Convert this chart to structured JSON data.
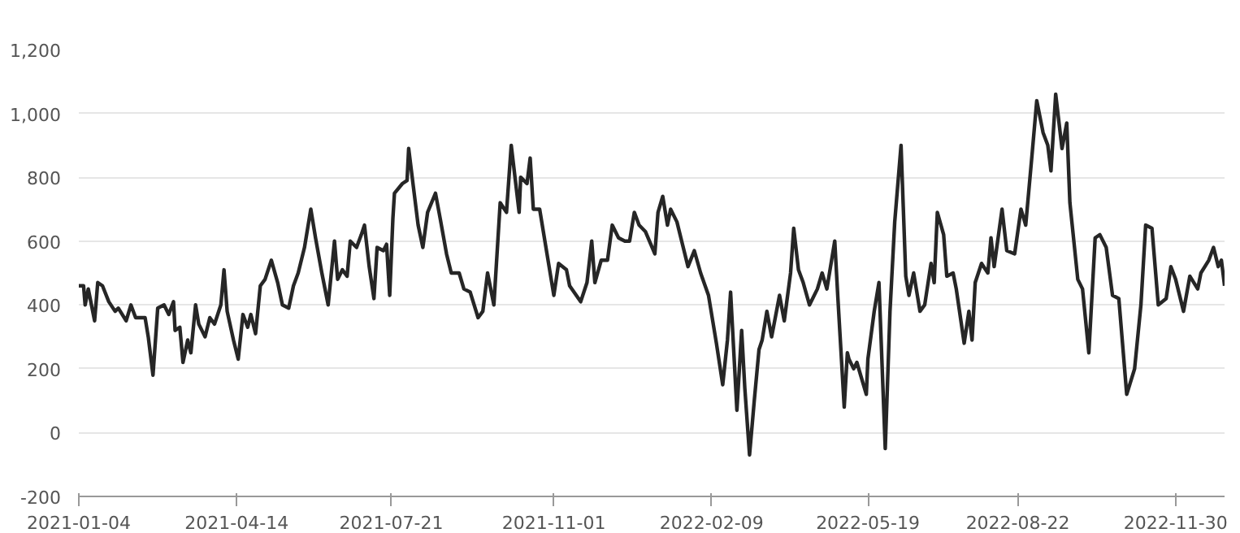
{
  "chart_data": {
    "type": "line",
    "x": [
      "2021-01-04",
      "2021-01-07",
      "2021-01-08",
      "2021-01-10",
      "2021-01-12",
      "2021-01-14",
      "2021-01-16",
      "2021-01-19",
      "2021-01-23",
      "2021-01-27",
      "2021-01-29",
      "2021-02-03",
      "2021-02-06",
      "2021-02-09",
      "2021-02-15",
      "2021-02-17",
      "2021-02-20",
      "2021-02-23",
      "2021-02-27",
      "2021-03-02",
      "2021-03-05",
      "2021-03-06",
      "2021-03-09",
      "2021-03-11",
      "2021-03-14",
      "2021-03-16",
      "2021-03-19",
      "2021-03-21",
      "2021-03-25",
      "2021-03-28",
      "2021-03-31",
      "2021-04-04",
      "2021-04-06",
      "2021-04-08",
      "2021-04-12",
      "2021-04-15",
      "2021-04-18",
      "2021-04-21",
      "2021-04-23",
      "2021-04-26",
      "2021-04-29",
      "2021-05-02",
      "2021-05-06",
      "2021-05-10",
      "2021-05-13",
      "2021-05-17",
      "2021-05-20",
      "2021-05-23",
      "2021-05-27",
      "2021-05-31",
      "2021-06-03",
      "2021-06-07",
      "2021-06-11",
      "2021-06-15",
      "2021-06-17",
      "2021-06-20",
      "2021-06-23",
      "2021-06-25",
      "2021-06-29",
      "2021-07-02",
      "2021-07-04",
      "2021-07-07",
      "2021-07-10",
      "2021-07-12",
      "2021-07-16",
      "2021-07-18",
      "2021-07-20",
      "2021-07-22",
      "2021-07-23",
      "2021-07-28",
      "2021-07-31",
      "2021-08-01",
      "2021-08-04",
      "2021-08-07",
      "2021-08-10",
      "2021-08-13",
      "2021-08-18",
      "2021-08-21",
      "2021-08-25",
      "2021-08-28",
      "2021-09-02",
      "2021-09-05",
      "2021-09-09",
      "2021-09-14",
      "2021-09-17",
      "2021-09-20",
      "2021-09-24",
      "2021-09-28",
      "2021-10-02",
      "2021-10-05",
      "2021-10-10",
      "2021-10-11",
      "2021-10-15",
      "2021-10-17",
      "2021-10-19",
      "2021-10-23",
      "2021-10-27",
      "2021-11-01",
      "2021-11-04",
      "2021-11-09",
      "2021-11-11",
      "2021-11-18",
      "2021-11-22",
      "2021-11-25",
      "2021-11-27",
      "2021-12-01",
      "2021-12-05",
      "2021-12-08",
      "2021-12-12",
      "2021-12-16",
      "2021-12-19",
      "2021-12-22",
      "2021-12-25",
      "2021-12-29",
      "2022-01-04",
      "2022-01-06",
      "2022-01-09",
      "2022-01-12",
      "2022-01-14",
      "2022-01-18",
      "2022-01-21",
      "2022-01-25",
      "2022-01-29",
      "2022-02-02",
      "2022-02-07",
      "2022-02-12",
      "2022-02-16",
      "2022-02-19",
      "2022-02-21",
      "2022-02-25",
      "2022-02-28",
      "2022-03-02",
      "2022-03-05",
      "2022-03-08",
      "2022-03-11",
      "2022-03-13",
      "2022-03-16",
      "2022-03-19",
      "2022-03-24",
      "2022-03-27",
      "2022-03-31",
      "2022-04-02",
      "2022-04-05",
      "2022-04-08",
      "2022-04-12",
      "2022-04-17",
      "2022-04-20",
      "2022-04-23",
      "2022-04-28",
      "2022-04-30",
      "2022-05-04",
      "2022-05-06",
      "2022-05-07",
      "2022-05-10",
      "2022-05-12",
      "2022-05-18",
      "2022-05-19",
      "2022-05-23",
      "2022-05-26",
      "2022-05-30",
      "2022-06-02",
      "2022-06-05",
      "2022-06-09",
      "2022-06-12",
      "2022-06-14",
      "2022-06-17",
      "2022-06-21",
      "2022-06-24",
      "2022-06-28",
      "2022-06-30",
      "2022-07-02",
      "2022-07-06",
      "2022-07-08",
      "2022-07-12",
      "2022-07-14",
      "2022-07-19",
      "2022-07-22",
      "2022-07-24",
      "2022-07-26",
      "2022-07-30",
      "2022-08-03",
      "2022-08-05",
      "2022-08-07",
      "2022-08-12",
      "2022-08-15",
      "2022-08-20",
      "2022-08-24",
      "2022-08-27",
      "2022-08-31",
      "2022-09-03",
      "2022-09-07",
      "2022-09-10",
      "2022-09-12",
      "2022-09-15",
      "2022-09-19",
      "2022-09-22",
      "2022-09-24",
      "2022-09-29",
      "2022-10-02",
      "2022-10-06",
      "2022-10-10",
      "2022-10-13",
      "2022-10-17",
      "2022-10-21",
      "2022-10-25",
      "2022-10-30",
      "2022-11-04",
      "2022-11-08",
      "2022-11-11",
      "2022-11-15",
      "2022-11-19",
      "2022-11-24",
      "2022-11-27",
      "2022-11-30",
      "2022-12-05",
      "2022-12-09",
      "2022-12-14",
      "2022-12-16",
      "2022-12-21",
      "2022-12-24",
      "2022-12-27",
      "2022-12-29",
      "2022-12-31"
    ],
    "series": [
      {
        "color": "#262626",
        "values": [
          460,
          460,
          400,
          450,
          400,
          350,
          470,
          460,
          410,
          380,
          390,
          350,
          400,
          360,
          360,
          300,
          180,
          390,
          400,
          370,
          410,
          320,
          330,
          220,
          290,
          250,
          400,
          340,
          300,
          360,
          340,
          400,
          510,
          380,
          290,
          230,
          370,
          330,
          370,
          310,
          460,
          480,
          540,
          470,
          400,
          390,
          460,
          500,
          580,
          700,
          610,
          500,
          400,
          600,
          480,
          510,
          490,
          600,
          580,
          620,
          650,
          520,
          420,
          580,
          570,
          590,
          430,
          670,
          750,
          780,
          790,
          890,
          770,
          650,
          580,
          690,
          750,
          670,
          560,
          500,
          500,
          450,
          440,
          360,
          380,
          500,
          400,
          720,
          690,
          900,
          690,
          800,
          780,
          860,
          700,
          700,
          580,
          430,
          530,
          510,
          460,
          410,
          470,
          600,
          470,
          540,
          540,
          650,
          610,
          600,
          600,
          690,
          650,
          630,
          560,
          690,
          740,
          650,
          700,
          660,
          600,
          520,
          570,
          500,
          430,
          280,
          150,
          290,
          440,
          70,
          320,
          140,
          -70,
          100,
          260,
          290,
          380,
          300,
          430,
          350,
          500,
          640,
          510,
          470,
          400,
          450,
          500,
          450,
          600,
          420,
          80,
          250,
          230,
          200,
          220,
          120,
          230,
          380,
          470,
          -50,
          380,
          660,
          900,
          490,
          430,
          500,
          380,
          400,
          530,
          470,
          690,
          620,
          490,
          500,
          450,
          280,
          380,
          290,
          470,
          530,
          500,
          610,
          520,
          700,
          570,
          560,
          700,
          650,
          870,
          1040,
          940,
          900,
          820,
          1060,
          890,
          970,
          720,
          480,
          450,
          250,
          610,
          620,
          580,
          430,
          420,
          120,
          200,
          400,
          650,
          640,
          400,
          420,
          520,
          480,
          380,
          490,
          450,
          500,
          540,
          580,
          520,
          540,
          460
        ]
      }
    ],
    "xlim": [
      "2021-01-04",
      "2022-12-31"
    ],
    "xticks": [
      {
        "value": "2021-01-04",
        "label": "2021-01-04"
      },
      {
        "value": "2021-04-14",
        "label": "2021-04-14"
      },
      {
        "value": "2021-07-21",
        "label": "2021-07-21"
      },
      {
        "value": "2021-11-01",
        "label": "2021-11-01"
      },
      {
        "value": "2022-02-09",
        "label": "2022-02-09"
      },
      {
        "value": "2022-05-19",
        "label": "2022-05-19"
      },
      {
        "value": "2022-08-22",
        "label": "2022-08-22"
      },
      {
        "value": "2022-11-30",
        "label": "2022-11-30"
      }
    ],
    "ylim": [
      -200,
      1200
    ],
    "yticks": [
      -200,
      0,
      200,
      400,
      600,
      800,
      {
        "value": 1000,
        "label": "1,000"
      },
      {
        "value": 1200,
        "label": "1,200"
      }
    ],
    "grid": "y",
    "line_style": "solid"
  }
}
